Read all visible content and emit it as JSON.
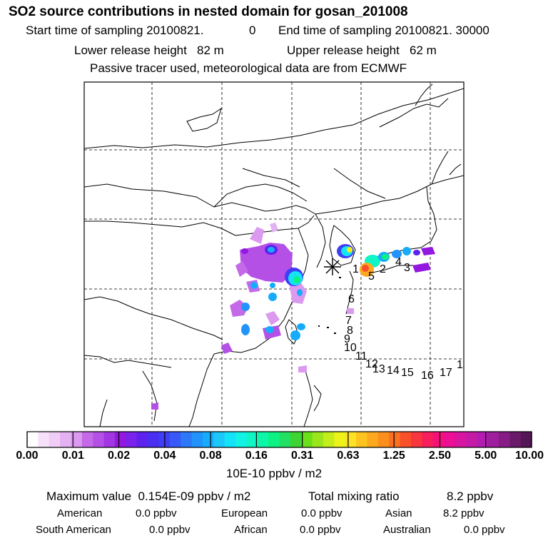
{
  "header": {
    "title": "SO2 source contributions in nested domain for gosan_201008",
    "start_label": "Start time of sampling 20100821.",
    "start_value": "0",
    "end_label": "End time of sampling 20100821. 30000",
    "lower_label": "Lower release height",
    "lower_value": "82 m",
    "upper_label": "Upper release height",
    "upper_value": "62 m",
    "info": "Passive tracer used, meteorological data are from ECMWF"
  },
  "map": {
    "trajectory_labels": [
      "1",
      "2",
      "3",
      "4",
      "5",
      "6",
      "7",
      "8",
      "9",
      "10",
      "11",
      "12",
      "13",
      "14",
      "15",
      "16",
      "17",
      "1"
    ],
    "receptor_marker": "star-receptor-icon"
  },
  "colorbar": {
    "tick_labels": [
      "0.00",
      "0.01",
      "0.02",
      "0.04",
      "0.08",
      "0.16",
      "0.31",
      "0.63",
      "1.25",
      "2.50",
      "5.00",
      "10.00"
    ],
    "colors": [
      "#ffffff",
      "#f7e0f9",
      "#efcdf6",
      "#e4b1f3",
      "#dc99f0",
      "#c46ae9",
      "#b450e6",
      "#a236e3",
      "#9318e0",
      "#7a21ec",
      "#5d22ee",
      "#4a2ff2",
      "#3e3df7",
      "#3858f8",
      "#2c78f9",
      "#2193fa",
      "#16acfb",
      "#1bc8f9",
      "#14e3f7",
      "#12f3e6",
      "#10f5c6",
      "#0ef6a8",
      "#0df383",
      "#22e063",
      "#3dd434",
      "#6bdf1a",
      "#9ae61a",
      "#c4ed1c",
      "#ecf21a",
      "#fde223",
      "#fdc41f",
      "#fda91f",
      "#fb8f1e",
      "#fa6f22",
      "#f9502a",
      "#f8363d",
      "#f61f5c",
      "#f4127a",
      "#ec0f93",
      "#d814a0",
      "#c519a6",
      "#b31cb1",
      "#9e1e9e",
      "#861c86",
      "#6b1a6b",
      "#551655"
    ],
    "units": "10E-10 ppbv / m2"
  },
  "footer": {
    "max_label": "Maximum value",
    "max_value": "0.154E-09 ppbv / m2",
    "total_label": "Total mixing ratio",
    "total_value": "8.2 ppbv",
    "regions": [
      {
        "name": "American",
        "value": "0.0 ppbv"
      },
      {
        "name": "European",
        "value": "0.0 ppbv"
      },
      {
        "name": "Asian",
        "value": "8.2 ppbv"
      },
      {
        "name": "South American",
        "value": "0.0 ppbv"
      },
      {
        "name": "African",
        "value": "0.0 ppbv"
      },
      {
        "name": "Australian",
        "value": "0.0 ppbv"
      }
    ]
  }
}
